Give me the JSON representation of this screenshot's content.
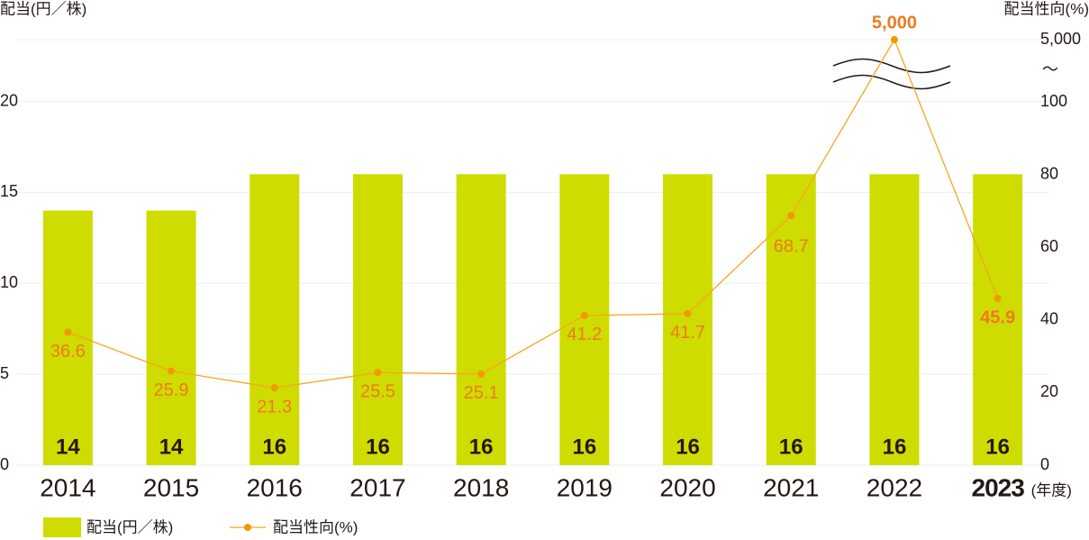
{
  "chart_data": {
    "type": "bar-line",
    "y_label": "配当(円／株)",
    "y2_label": "配当性向(%)",
    "x_unit": "(年度)",
    "highlight_category": "2023",
    "categories": [
      "2014",
      "2015",
      "2016",
      "2017",
      "2018",
      "2019",
      "2020",
      "2021",
      "2022",
      "2023"
    ],
    "series": [
      {
        "name": "配当(円／株)",
        "type": "bar",
        "color": "#cfdc00",
        "values": [
          14,
          14,
          16,
          16,
          16,
          16,
          16,
          16,
          16,
          16
        ]
      },
      {
        "name": "配当性向(%)",
        "type": "line",
        "axis": "y2",
        "color": "#f5a623",
        "marker_color": "#f39800",
        "values": [
          36.6,
          25.9,
          21.3,
          25.5,
          25.1,
          41.2,
          41.7,
          68.7,
          5000,
          45.9
        ],
        "value_labels": [
          "36.6",
          "25.9",
          "21.3",
          "25.5",
          "25.1",
          "41.2",
          "41.7",
          "68.7",
          "5,000",
          "45.9"
        ]
      }
    ],
    "ylim": [
      0,
      23.4
    ],
    "yticks": [
      0,
      5,
      10,
      15,
      20
    ],
    "y2lim": [
      0,
      5000
    ],
    "y2ticks": [
      0,
      20,
      40,
      60,
      80,
      100,
      {
        "value": 5000,
        "label": "5,000"
      }
    ],
    "y2_break_label": "〜",
    "grid": true,
    "legend": "bottom-left"
  }
}
